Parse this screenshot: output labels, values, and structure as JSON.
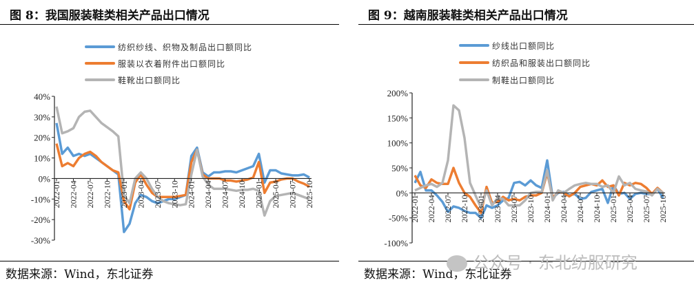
{
  "watermark": "公众号 · 东北纺服研究",
  "charts": [
    {
      "title": "图 8：我国服装鞋类相关产品出口情况",
      "source": "数据来源：Wind，东北证券"
    },
    {
      "title": "图 9：越南服装鞋类相关产品出口情况",
      "source": "数据来源：Wind，东北证券"
    }
  ],
  "chart_data": [
    {
      "type": "line",
      "title": "图 8：我国服装鞋类相关产品出口情况",
      "ylim": [
        -30,
        40
      ],
      "yticks": [
        "-30%",
        "-20%",
        "-10%",
        "0%",
        "10%",
        "20%",
        "30%",
        "40%"
      ],
      "ytick_values": [
        -30,
        -20,
        -10,
        0,
        10,
        20,
        30,
        40
      ],
      "x_start": "2022-01",
      "x_end": "2025-10",
      "xtick_labels": [
        "2022-01",
        "2022-04",
        "2022-07",
        "2022-10",
        "2023-01",
        "2023-04",
        "2023-07",
        "2023-10",
        "2024-01",
        "2024-04",
        "2024-07",
        "2024-10",
        "2025-01",
        "2025-04",
        "2025-07",
        "2025-10"
      ],
      "legend": "top-left",
      "grid": false,
      "series": [
        {
          "name": "纺织纱线、织物及制品出口额同比",
          "color": "#5b9bd5",
          "values": [
            27,
            12,
            15,
            11,
            12,
            11,
            12,
            10,
            8,
            6,
            4,
            2,
            -26,
            -22,
            -12,
            -8,
            -9,
            -11,
            -12,
            -11,
            -10,
            -10,
            -9,
            -8,
            11,
            15,
            3,
            1,
            3,
            3,
            3.5,
            3.5,
            3,
            4,
            5,
            6,
            12,
            -2,
            4,
            4,
            2.5,
            2,
            1.5,
            1.5,
            2,
            0.5
          ]
        },
        {
          "name": "服装以衣着附件出口额同比",
          "color": "#ed7d31",
          "values": [
            17,
            6,
            7.5,
            6,
            10,
            12,
            13,
            11,
            8,
            6,
            4,
            3,
            -11,
            -15,
            -2,
            2,
            -3,
            -7,
            -9,
            -9,
            -9,
            -9,
            -8.5,
            -8,
            8,
            14,
            2,
            0,
            0,
            0,
            -1,
            -1,
            -1.5,
            -1,
            -0.5,
            0.5,
            8,
            -7,
            -2,
            -1.5,
            -0.5,
            0,
            0,
            -1.5,
            -2.5,
            -4
          ]
        },
        {
          "name": "鞋靴出口额同比",
          "color": "#b4b4b4",
          "values": [
            35,
            22,
            23,
            24.5,
            30,
            32.5,
            33,
            30,
            27,
            25,
            23,
            20.5,
            -8,
            -12,
            0,
            3,
            0,
            -5,
            -9,
            -11,
            -12,
            -12.5,
            -13,
            -12.5,
            2,
            14,
            1,
            -3,
            -5,
            -5,
            -5,
            -5.5,
            -6,
            -5.5,
            -5.5,
            -5,
            -6,
            -18,
            -11,
            -8.5,
            -8,
            -7.5,
            -7,
            -8,
            -9,
            -10
          ]
        }
      ]
    },
    {
      "type": "line",
      "title": "图 9：越南服装鞋类相关产品出口情况",
      "ylim": [
        -100,
        200
      ],
      "yticks": [
        "-100%",
        "-50%",
        "0%",
        "50%",
        "100%",
        "150%",
        "200%"
      ],
      "ytick_values": [
        -100,
        -50,
        0,
        50,
        100,
        150,
        200
      ],
      "x_start": "2022-01",
      "x_end": "2025-10",
      "xtick_labels": [
        "2022-01",
        "2022-04",
        "2022-07",
        "2022-10",
        "2023-01",
        "2023-04",
        "2023-07",
        "2023-10",
        "2024-01",
        "2024-04",
        "2024-07",
        "2024-10",
        "2025-01",
        "2025-04",
        "2025-07",
        "2025-10"
      ],
      "legend": "top-left",
      "grid": false,
      "series": [
        {
          "name": "纱线出口额同比",
          "color": "#5b9bd5",
          "values": [
            20,
            42,
            5,
            5,
            -5,
            -18,
            -38,
            -27,
            -30,
            -36,
            -40,
            -40,
            -50,
            -25,
            -30,
            -25,
            -15,
            -10,
            20,
            22,
            15,
            25,
            15,
            10,
            65,
            -10,
            0,
            2,
            -5,
            -2,
            -12,
            -10,
            2,
            5,
            8,
            -20,
            15,
            -2,
            0,
            -12,
            -2,
            0,
            -2,
            -3,
            8,
            -10
          ]
        },
        {
          "name": "纺织品和服装出口额同比",
          "color": "#ed7d31",
          "values": [
            35,
            15,
            10,
            27,
            20,
            18,
            18,
            50,
            20,
            0,
            -8,
            -25,
            -40,
            12,
            -20,
            -18,
            -8,
            -15,
            -12,
            -15,
            -8,
            -5,
            -5,
            0,
            40,
            -10,
            2,
            0,
            -7,
            0,
            12,
            15,
            18,
            15,
            25,
            12,
            15,
            -5,
            20,
            15,
            20,
            18,
            10,
            -2,
            10,
            0
          ]
        },
        {
          "name": "制鞋出口额同比",
          "color": "#b4b4b4",
          "values": [
            5,
            10,
            15,
            18,
            12,
            20,
            65,
            175,
            165,
            110,
            20,
            -5,
            -30,
            5,
            -25,
            -10,
            -12,
            -25,
            -25,
            -25,
            -15,
            0,
            2,
            2,
            45,
            -15,
            5,
            0,
            8,
            15,
            18,
            20,
            18,
            18,
            12,
            15,
            0,
            33,
            15,
            20,
            8,
            5,
            3,
            -5,
            8,
            0
          ]
        }
      ]
    }
  ]
}
